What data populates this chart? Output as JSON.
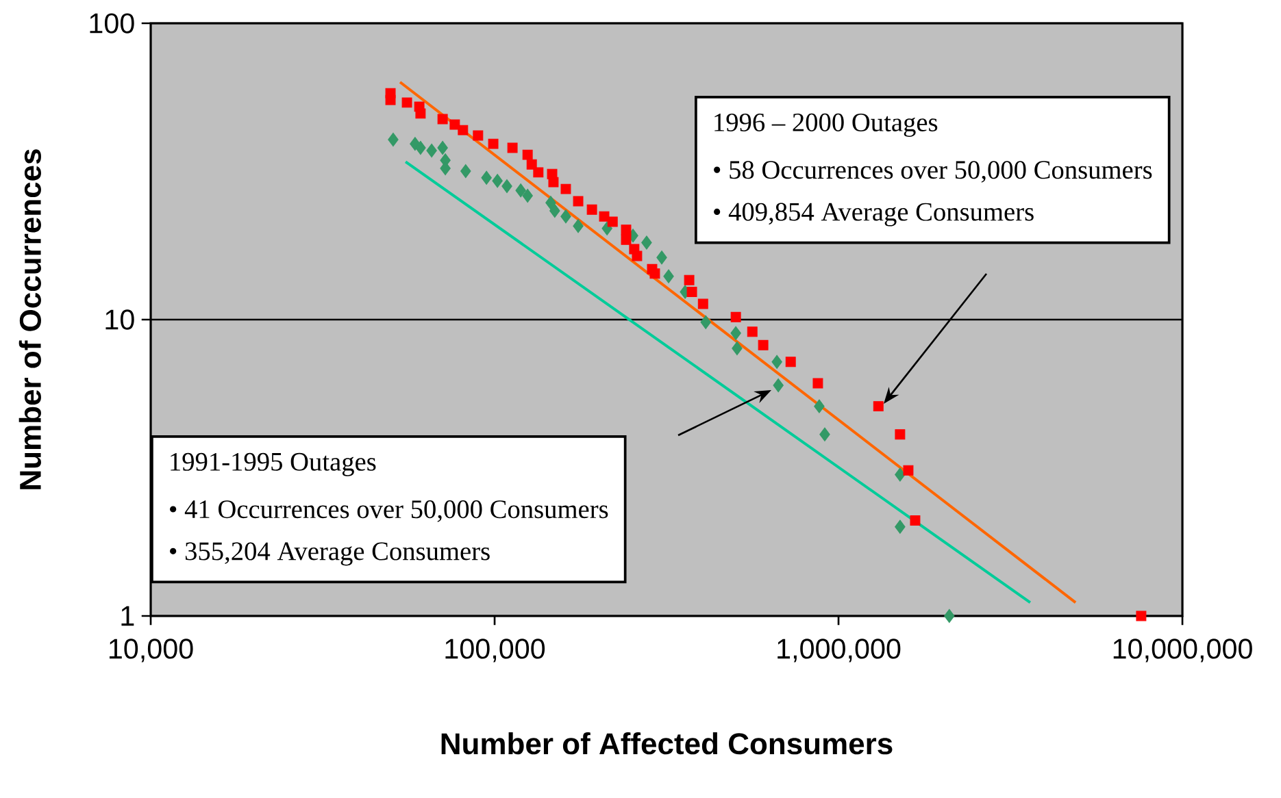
{
  "chart_data": {
    "type": "scatter",
    "xlabel": "Number of Affected Consumers",
    "ylabel": "Number of Occurrences",
    "log": "xy",
    "grid": "y",
    "xlim": [
      10000,
      10000000
    ],
    "ylim": [
      1,
      100
    ],
    "xticks": [
      {
        "value": 10000,
        "label": "10,000"
      },
      {
        "value": 100000,
        "label": "100,000"
      },
      {
        "value": 1000000,
        "label": "1,000,000"
      },
      {
        "value": 10000000,
        "label": "10,000,000"
      }
    ],
    "yticks": [
      1,
      10,
      100
    ],
    "series": [
      {
        "marker": "diamond",
        "color": "#339966",
        "x": [
          50700,
          58700,
          60900,
          65600,
          70600,
          71900,
          71900,
          82400,
          94700,
          101900,
          108600,
          119100,
          124700,
          145600,
          149600,
          161100,
          175000,
          212300,
          252600,
          276700,
          306200,
          320600,
          358100,
          411100,
          502800,
          507000,
          662200,
          668300,
          879000,
          912000,
          1510000,
          1510000,
          2100000
        ],
        "values": [
          40.5,
          39.2,
          38.0,
          37.2,
          38.0,
          34.5,
          32.4,
          31.7,
          30.1,
          29.4,
          28.2,
          27.3,
          26.2,
          24.8,
          23.3,
          22.3,
          20.7,
          20.3,
          19.2,
          18.2,
          16.2,
          14.0,
          12.4,
          9.8,
          9.0,
          8.0,
          7.2,
          6.0,
          5.1,
          4.1,
          3.0,
          2.0,
          1.0
        ]
      },
      {
        "marker": "square",
        "color": "#ff0000",
        "x": [
          49800,
          49800,
          55600,
          60400,
          60900,
          70600,
          76600,
          80900,
          89500,
          99100,
          112700,
          124700,
          128200,
          134000,
          147000,
          148300,
          161100,
          175000,
          191900,
          208300,
          220300,
          241200,
          241200,
          254700,
          259500,
          287100,
          292400,
          368000,
          374800,
          403700,
          502800,
          561600,
          604000,
          726000,
          871000,
          1306000,
          1510000,
          1596000,
          1671000,
          7590000
        ],
        "values": [
          58.1,
          55.1,
          54.0,
          52.3,
          49.6,
          47.5,
          45.5,
          43.6,
          41.8,
          39.2,
          38.0,
          36.0,
          33.4,
          31.4,
          31.0,
          29.1,
          27.6,
          25.1,
          23.5,
          22.3,
          21.4,
          20.1,
          18.6,
          17.3,
          16.4,
          14.8,
          14.3,
          13.6,
          12.4,
          11.3,
          10.2,
          9.1,
          8.2,
          7.2,
          6.1,
          5.1,
          4.1,
          3.1,
          2.1,
          1.0
        ]
      },
      {
        "type": "line",
        "line_style": "solid",
        "color": "#00cc99",
        "x": [
          55100,
          3610000
        ],
        "values": [
          34.1,
          1.11
        ]
      },
      {
        "type": "line",
        "line_style": "solid",
        "color": "#ff6600",
        "x": [
          53100,
          4890000
        ],
        "values": [
          63.3,
          1.11
        ]
      }
    ],
    "annotations": [
      "1996 – 2000 Outages",
      "• 58 Occurrences over 50,000 Consumers",
      "• 409,854 Average Consumers",
      "1991-1995 Outages",
      "• 41 Occurrences over 50,000 Consumers",
      "• 355,204 Average Consumers"
    ]
  }
}
